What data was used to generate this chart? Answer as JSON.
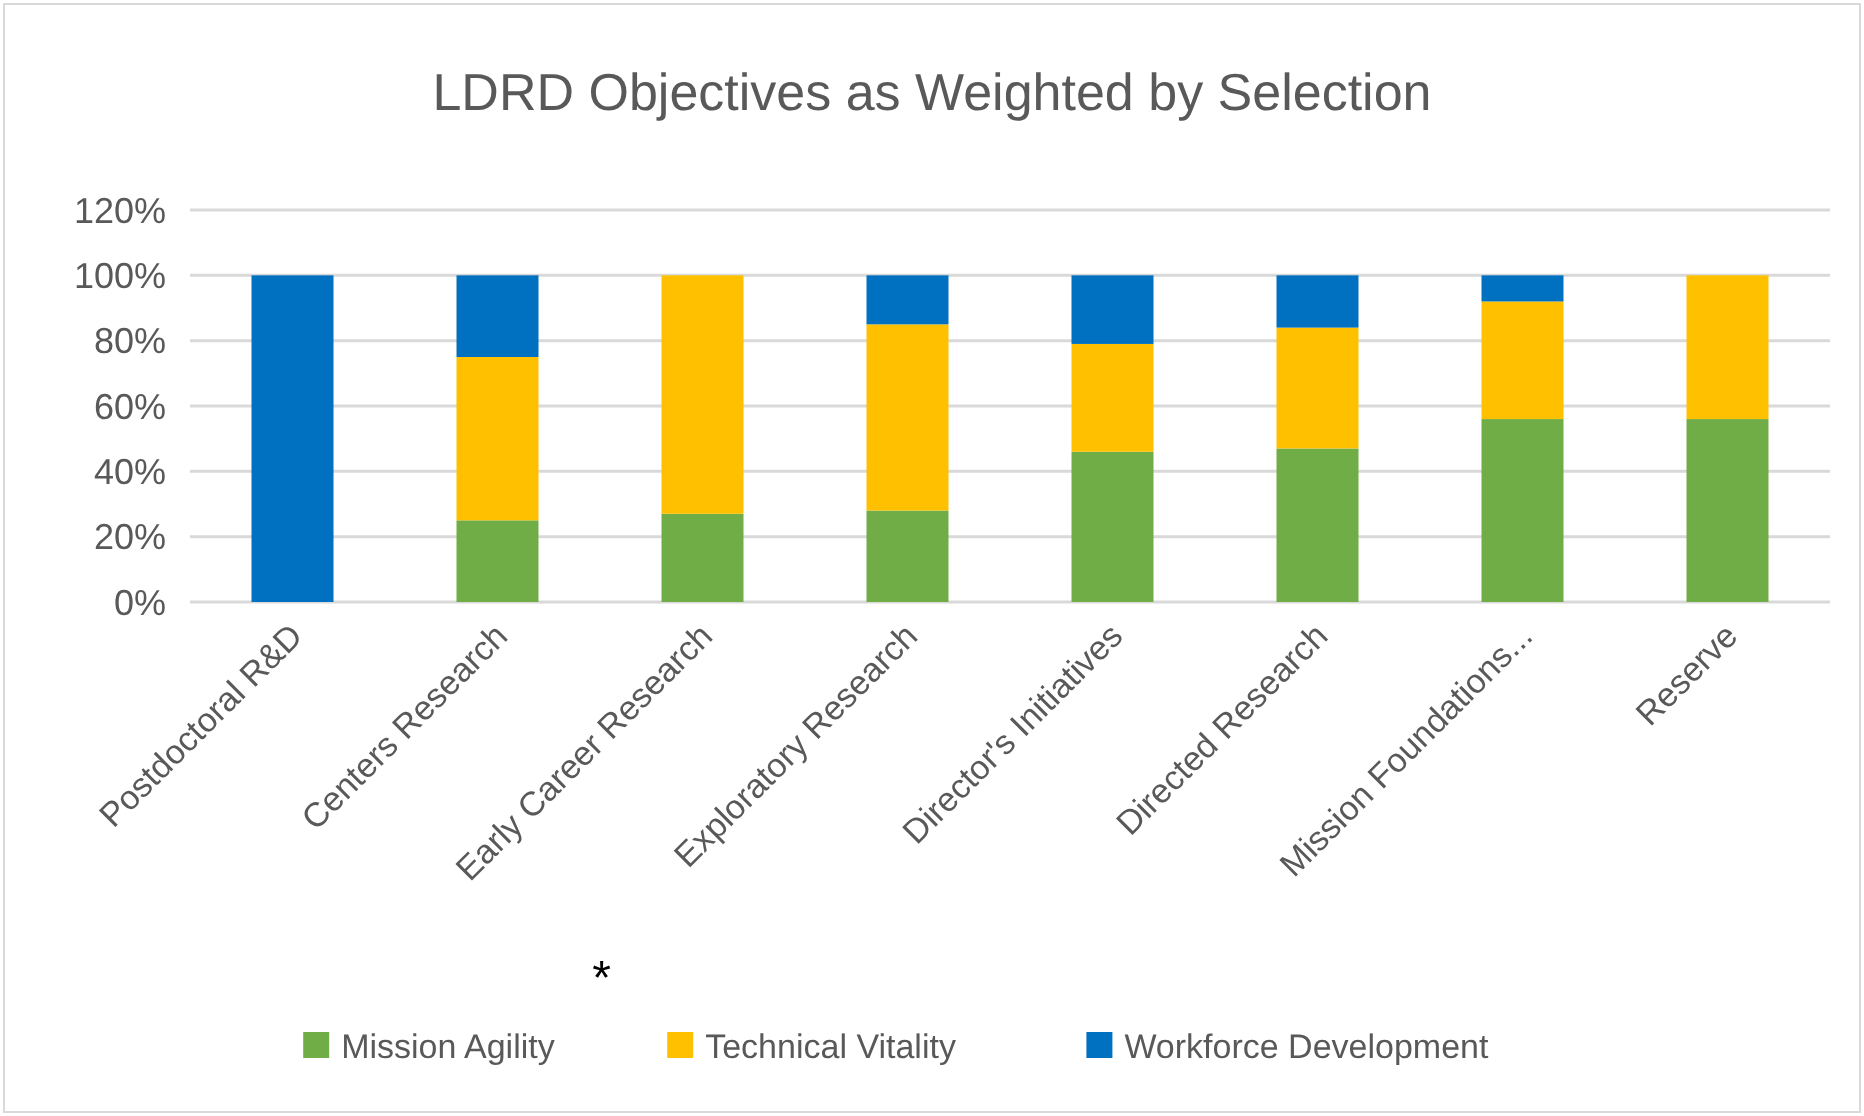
{
  "chart_data": {
    "type": "bar",
    "title": "LDRD Objectives as Weighted by Selection",
    "stacked": true,
    "categories": [
      "Postdoctoral R&D",
      "Centers Research",
      "Early Career Research",
      "Exploratory Research",
      "Director's Initiatives",
      "Directed Research",
      "Mission Foundations...",
      "Reserve"
    ],
    "series": [
      {
        "name": "Mission Agility",
        "color": "#70ad47",
        "values": [
          0,
          25,
          27,
          28,
          46,
          47,
          56,
          56
        ]
      },
      {
        "name": "Technical Vitality",
        "color": "#ffc000",
        "values": [
          0,
          50,
          73,
          57,
          33,
          37,
          36,
          44
        ]
      },
      {
        "name": "Workforce Development",
        "color": "#0070c0",
        "values": [
          100,
          25,
          0,
          15,
          21,
          16,
          8,
          0
        ]
      }
    ],
    "ylim": [
      0,
      120
    ],
    "yticks": [
      {
        "value": 0,
        "label": "0%"
      },
      {
        "value": 20,
        "label": "20%"
      },
      {
        "value": 40,
        "label": "40%"
      },
      {
        "value": 60,
        "label": "60%"
      },
      {
        "value": 80,
        "label": "80%"
      },
      {
        "value": 100,
        "label": "100%"
      },
      {
        "value": 120,
        "label": "120%"
      }
    ],
    "grid": "y",
    "legend": "bottom",
    "annotations": [
      "*"
    ]
  }
}
